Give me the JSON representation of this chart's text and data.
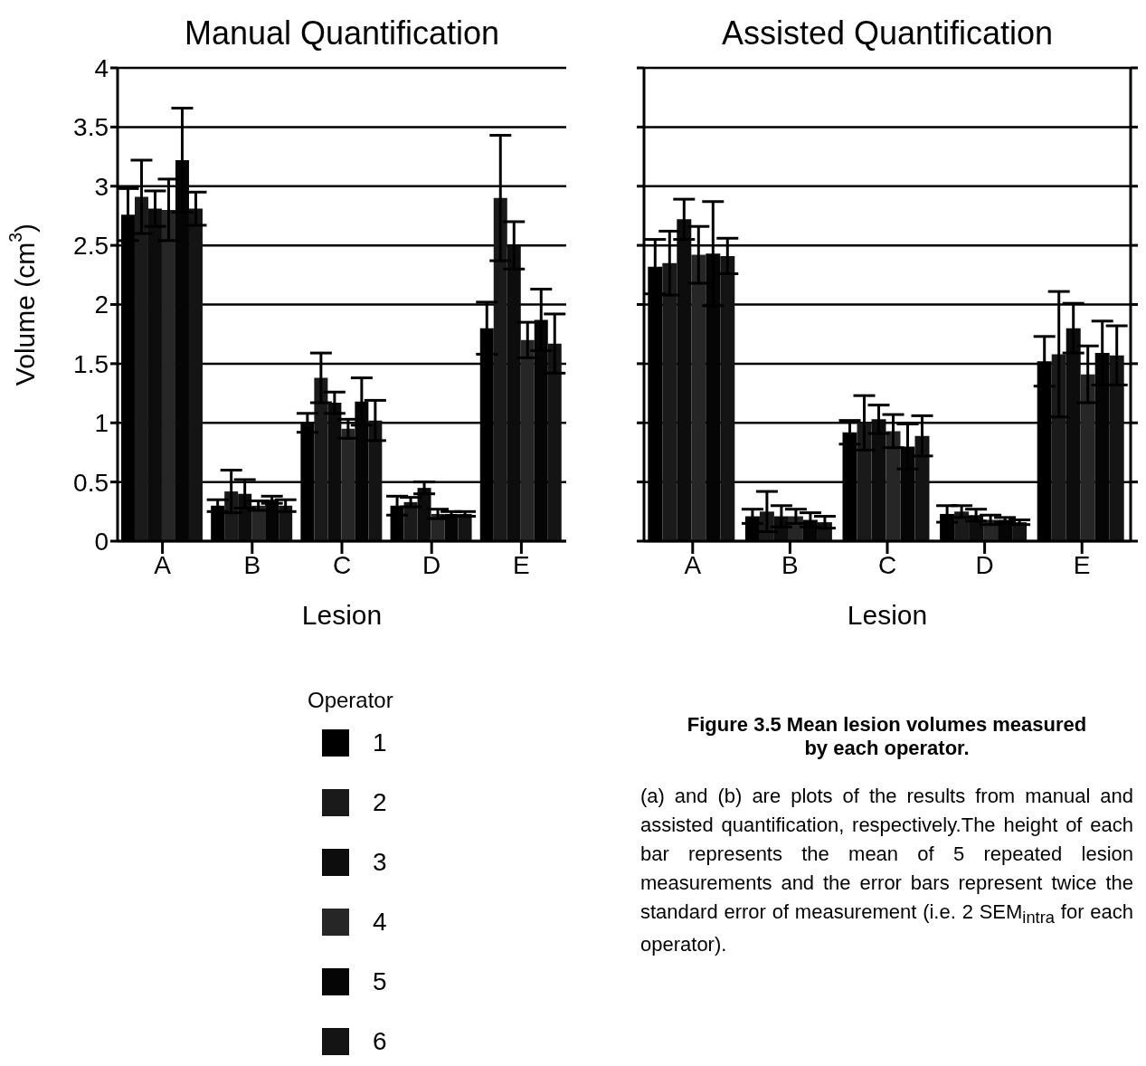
{
  "chart_data": [
    {
      "type": "bar",
      "title": "Manual Quantification",
      "xlabel": "Lesion",
      "ylabel": "Volume (cm$^{3}$)",
      "legend_title": "Operator",
      "categories": [
        "A",
        "B",
        "C",
        "D",
        "E"
      ],
      "series": [
        {
          "name": "1",
          "color": "#000000",
          "values": [
            2.76,
            0.3,
            1.0,
            0.3,
            1.8
          ],
          "errors": [
            0.22,
            0.05,
            0.08,
            0.08,
            0.22
          ]
        },
        {
          "name": "2",
          "color": "#1a1a1a",
          "values": [
            2.91,
            0.42,
            1.38,
            0.33,
            2.9
          ],
          "errors": [
            0.31,
            0.18,
            0.21,
            0.04,
            0.53
          ]
        },
        {
          "name": "3",
          "color": "#0d0d0d",
          "values": [
            2.81,
            0.4,
            1.17,
            0.45,
            2.5
          ],
          "errors": [
            0.15,
            0.12,
            0.09,
            0.05,
            0.2
          ]
        },
        {
          "name": "4",
          "color": "#262626",
          "values": [
            2.8,
            0.3,
            0.95,
            0.23,
            1.7
          ],
          "errors": [
            0.26,
            0.04,
            0.08,
            0.04,
            0.15
          ]
        },
        {
          "name": "5",
          "color": "#050505",
          "values": [
            3.22,
            0.35,
            1.18,
            0.23,
            1.87
          ],
          "errors": [
            0.44,
            0.03,
            0.2,
            0.02,
            0.26
          ]
        },
        {
          "name": "6",
          "color": "#141414",
          "values": [
            2.81,
            0.3,
            1.02,
            0.23,
            1.67
          ],
          "errors": [
            0.14,
            0.05,
            0.17,
            0.02,
            0.25
          ]
        }
      ],
      "ylim": [
        0,
        4
      ],
      "yticks": [
        0,
        0.5,
        1,
        1.5,
        2,
        2.5,
        3,
        3.5,
        4
      ],
      "grid": "y",
      "legend": "bottom"
    },
    {
      "type": "bar",
      "title": "Assisted Quantification",
      "xlabel": "Lesion",
      "categories": [
        "A",
        "B",
        "C",
        "D",
        "E"
      ],
      "series": [
        {
          "color": "#000000",
          "values": [
            2.32,
            0.21,
            0.92,
            0.23,
            1.52
          ],
          "errors": [
            0.23,
            0.06,
            0.1,
            0.07,
            0.21
          ]
        },
        {
          "color": "#1a1a1a",
          "values": [
            2.35,
            0.25,
            1.0,
            0.25,
            1.58
          ],
          "errors": [
            0.27,
            0.17,
            0.23,
            0.05,
            0.53
          ]
        },
        {
          "color": "#0d0d0d",
          "values": [
            2.72,
            0.21,
            1.03,
            0.22,
            1.8
          ],
          "errors": [
            0.17,
            0.09,
            0.12,
            0.05,
            0.21
          ]
        },
        {
          "color": "#262626",
          "values": [
            2.42,
            0.21,
            0.93,
            0.18,
            1.41
          ],
          "errors": [
            0.24,
            0.06,
            0.14,
            0.04,
            0.24
          ]
        },
        {
          "color": "#050505",
          "values": [
            2.43,
            0.18,
            0.8,
            0.18,
            1.59
          ],
          "errors": [
            0.44,
            0.06,
            0.19,
            0.02,
            0.27
          ]
        },
        {
          "color": "#141414",
          "values": [
            2.41,
            0.16,
            0.89,
            0.16,
            1.57
          ],
          "errors": [
            0.15,
            0.05,
            0.17,
            0.02,
            0.25
          ]
        }
      ],
      "ylim": [
        0,
        4
      ],
      "yticks": [
        0,
        0.5,
        1,
        1.5,
        2,
        2.5,
        3,
        3.5,
        4
      ],
      "grid": "y",
      "tick_labels": "x",
      "annotations": [
        "Figure 3.5 Mean lesion volumes measured by each operator.",
        "(a) and (b) are plots of the results from manual and assisted quantification, respectively.The height of each bar represents the mean of 5 repeated lesion measurements and the error bars represent twice the standard error of measurement (i.e. 2 SEM$_{intra}$ for each operator)."
      ]
    }
  ]
}
